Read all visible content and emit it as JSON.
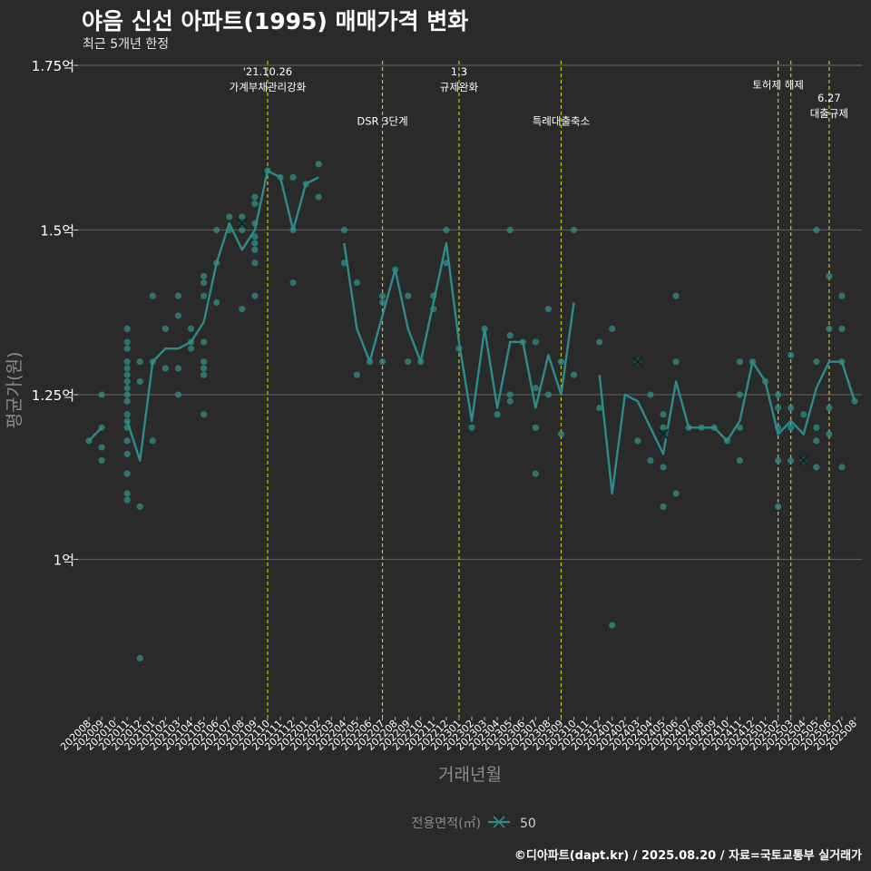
{
  "title": "야음 신선 아파트(1995) 매매가격 변화",
  "subtitle": "최근 5개년 한정",
  "caption": "©디아파트(dapt.kr) / 2025.08.20 / 자료=국토교통부 실거래가",
  "colors": {
    "background": "#2a2a2a",
    "grid": "#5a5a5a",
    "series": "#2e8b8b",
    "point": "#2f8f85",
    "event_line": "#c8c800",
    "text": "#ffffff",
    "axis_title": "#8c8c8c"
  },
  "chart_data": {
    "type": "line",
    "xlabel": "거래년월",
    "ylabel": "평균가(원)",
    "ylim": [
      0.8,
      1.75
    ],
    "y_ticks": [
      {
        "value": 1.0,
        "label": "1억"
      },
      {
        "value": 1.25,
        "label": "1.25억"
      },
      {
        "value": 1.5,
        "label": "1.5억"
      },
      {
        "value": 1.75,
        "label": "1.75억"
      }
    ],
    "grid": true,
    "legend": {
      "title": "전용면적(㎡)",
      "position": "bottom",
      "entries": [
        "50"
      ]
    },
    "categories": [
      "202008",
      "202009",
      "202010",
      "202011",
      "202012",
      "202101",
      "202102",
      "202103",
      "202104",
      "202105",
      "202106",
      "202107",
      "202108",
      "202109",
      "202110",
      "202111",
      "202112",
      "202201",
      "202202",
      "202203",
      "202204",
      "202205",
      "202206",
      "202207",
      "202208",
      "202209",
      "202210",
      "202211",
      "202212",
      "202301",
      "202302",
      "202303",
      "202304",
      "202305",
      "202306",
      "202307",
      "202308",
      "202309",
      "202310",
      "202311",
      "202312",
      "202401",
      "202402",
      "202403",
      "202404",
      "202405",
      "202406",
      "202407",
      "202408",
      "202409",
      "202410",
      "202411",
      "202412",
      "202501",
      "202502",
      "202503",
      "202504",
      "202505",
      "202506",
      "202507",
      "202508"
    ],
    "series": [
      {
        "name": "50",
        "average": [
          1.18,
          1.2,
          null,
          1.21,
          1.15,
          1.3,
          1.32,
          1.32,
          1.33,
          1.36,
          1.45,
          1.51,
          1.47,
          1.5,
          1.59,
          1.58,
          1.5,
          1.57,
          1.58,
          null,
          1.48,
          1.35,
          1.3,
          1.37,
          1.44,
          1.35,
          1.3,
          1.39,
          1.48,
          1.33,
          1.21,
          1.35,
          1.23,
          1.33,
          1.33,
          1.23,
          1.31,
          1.25,
          1.39,
          null,
          1.28,
          1.1,
          1.25,
          1.24,
          1.2,
          1.16,
          1.27,
          1.2,
          1.2,
          1.2,
          1.18,
          1.21,
          1.3,
          1.27,
          1.19,
          1.21,
          1.19,
          1.26,
          1.3,
          1.3,
          1.24
        ]
      }
    ],
    "transactions": [
      {
        "x": "202008",
        "y": 1.18
      },
      {
        "x": "202009",
        "y": 1.25
      },
      {
        "x": "202009",
        "y": 1.2
      },
      {
        "x": "202009",
        "y": 1.17
      },
      {
        "x": "202009",
        "y": 1.15
      },
      {
        "x": "202011",
        "y": 1.35
      },
      {
        "x": "202011",
        "y": 1.33
      },
      {
        "x": "202011",
        "y": 1.32
      },
      {
        "x": "202011",
        "y": 1.3
      },
      {
        "x": "202011",
        "y": 1.29
      },
      {
        "x": "202011",
        "y": 1.28
      },
      {
        "x": "202011",
        "y": 1.27
      },
      {
        "x": "202011",
        "y": 1.26
      },
      {
        "x": "202011",
        "y": 1.25
      },
      {
        "x": "202011",
        "y": 1.24
      },
      {
        "x": "202011",
        "y": 1.22
      },
      {
        "x": "202011",
        "y": 1.21
      },
      {
        "x": "202011",
        "y": 1.2
      },
      {
        "x": "202011",
        "y": 1.18
      },
      {
        "x": "202011",
        "y": 1.16
      },
      {
        "x": "202011",
        "y": 1.13
      },
      {
        "x": "202011",
        "y": 1.1
      },
      {
        "x": "202011",
        "y": 1.09
      },
      {
        "x": "202012",
        "y": 1.3
      },
      {
        "x": "202012",
        "y": 1.27
      },
      {
        "x": "202012",
        "y": 1.08
      },
      {
        "x": "202012",
        "y": 0.85
      },
      {
        "x": "202101",
        "y": 1.4
      },
      {
        "x": "202101",
        "y": 1.3
      },
      {
        "x": "202101",
        "y": 1.18
      },
      {
        "x": "202102",
        "y": 1.35
      },
      {
        "x": "202102",
        "y": 1.29
      },
      {
        "x": "202103",
        "y": 1.4
      },
      {
        "x": "202103",
        "y": 1.37
      },
      {
        "x": "202103",
        "y": 1.29
      },
      {
        "x": "202103",
        "y": 1.25
      },
      {
        "x": "202104",
        "y": 1.35
      },
      {
        "x": "202104",
        "y": 1.33
      },
      {
        "x": "202104",
        "y": 1.32
      },
      {
        "x": "202105",
        "y": 1.43
      },
      {
        "x": "202105",
        "y": 1.42
      },
      {
        "x": "202105",
        "y": 1.4
      },
      {
        "x": "202105",
        "y": 1.33
      },
      {
        "x": "202105",
        "y": 1.3
      },
      {
        "x": "202105",
        "y": 1.29
      },
      {
        "x": "202105",
        "y": 1.28
      },
      {
        "x": "202105",
        "y": 1.22
      },
      {
        "x": "202106",
        "y": 1.45
      },
      {
        "x": "202106",
        "y": 1.39
      },
      {
        "x": "202106",
        "y": 1.5
      },
      {
        "x": "202107",
        "y": 1.52
      },
      {
        "x": "202107",
        "y": 1.5
      },
      {
        "x": "202108",
        "y": 1.52
      },
      {
        "x": "202108",
        "y": 1.51
      },
      {
        "x": "202108",
        "y": 1.5
      },
      {
        "x": "202108",
        "y": 1.38
      },
      {
        "x": "202109",
        "y": 1.55
      },
      {
        "x": "202109",
        "y": 1.54
      },
      {
        "x": "202109",
        "y": 1.51
      },
      {
        "x": "202109",
        "y": 1.49
      },
      {
        "x": "202109",
        "y": 1.48
      },
      {
        "x": "202109",
        "y": 1.47
      },
      {
        "x": "202109",
        "y": 1.45
      },
      {
        "x": "202109",
        "y": 1.4
      },
      {
        "x": "202110",
        "y": 1.59
      },
      {
        "x": "202111",
        "y": 1.58
      },
      {
        "x": "202112",
        "y": 1.58
      },
      {
        "x": "202112",
        "y": 1.5
      },
      {
        "x": "202112",
        "y": 1.42
      },
      {
        "x": "202201",
        "y": 1.57
      },
      {
        "x": "202202",
        "y": 1.6
      },
      {
        "x": "202202",
        "y": 1.55
      },
      {
        "x": "202204",
        "y": 1.5
      },
      {
        "x": "202204",
        "y": 1.45
      },
      {
        "x": "202205",
        "y": 1.42
      },
      {
        "x": "202205",
        "y": 1.28
      },
      {
        "x": "202206",
        "y": 1.3
      },
      {
        "x": "202207",
        "y": 1.4
      },
      {
        "x": "202207",
        "y": 1.39
      },
      {
        "x": "202207",
        "y": 1.3
      },
      {
        "x": "202208",
        "y": 1.44
      },
      {
        "x": "202209",
        "y": 1.4
      },
      {
        "x": "202209",
        "y": 1.3
      },
      {
        "x": "202210",
        "y": 1.3
      },
      {
        "x": "202211",
        "y": 1.4
      },
      {
        "x": "202211",
        "y": 1.38
      },
      {
        "x": "202212",
        "y": 1.5
      },
      {
        "x": "202212",
        "y": 1.45
      },
      {
        "x": "202301",
        "y": 1.32
      },
      {
        "x": "202302",
        "y": 1.2
      },
      {
        "x": "202303",
        "y": 1.35
      },
      {
        "x": "202304",
        "y": 1.22
      },
      {
        "x": "202305",
        "y": 1.5
      },
      {
        "x": "202305",
        "y": 1.34
      },
      {
        "x": "202305",
        "y": 1.25
      },
      {
        "x": "202305",
        "y": 1.24
      },
      {
        "x": "202306",
        "y": 1.33
      },
      {
        "x": "202307",
        "y": 1.33
      },
      {
        "x": "202307",
        "y": 1.26
      },
      {
        "x": "202307",
        "y": 1.2
      },
      {
        "x": "202307",
        "y": 1.13
      },
      {
        "x": "202308",
        "y": 1.38
      },
      {
        "x": "202308",
        "y": 1.25
      },
      {
        "x": "202309",
        "y": 1.3
      },
      {
        "x": "202309",
        "y": 1.19
      },
      {
        "x": "202310",
        "y": 1.5
      },
      {
        "x": "202310",
        "y": 1.28
      },
      {
        "x": "202312",
        "y": 1.33
      },
      {
        "x": "202312",
        "y": 1.23
      },
      {
        "x": "202401",
        "y": 1.35
      },
      {
        "x": "202401",
        "y": 0.9
      },
      {
        "x": "202403",
        "y": 1.3
      },
      {
        "x": "202403",
        "y": 1.18
      },
      {
        "x": "202404",
        "y": 1.25
      },
      {
        "x": "202404",
        "y": 1.15
      },
      {
        "x": "202405",
        "y": 1.22
      },
      {
        "x": "202405",
        "y": 1.2
      },
      {
        "x": "202405",
        "y": 1.14
      },
      {
        "x": "202405",
        "y": 1.08
      },
      {
        "x": "202406",
        "y": 1.4
      },
      {
        "x": "202406",
        "y": 1.3
      },
      {
        "x": "202406",
        "y": 1.1
      },
      {
        "x": "202407",
        "y": 1.2
      },
      {
        "x": "202408",
        "y": 1.2
      },
      {
        "x": "202409",
        "y": 1.2
      },
      {
        "x": "202410",
        "y": 1.18
      },
      {
        "x": "202411",
        "y": 1.3
      },
      {
        "x": "202411",
        "y": 1.25
      },
      {
        "x": "202411",
        "y": 1.2
      },
      {
        "x": "202411",
        "y": 1.15
      },
      {
        "x": "202412",
        "y": 1.3
      },
      {
        "x": "202501",
        "y": 1.27
      },
      {
        "x": "202502",
        "y": 1.25
      },
      {
        "x": "202502",
        "y": 1.23
      },
      {
        "x": "202502",
        "y": 1.2
      },
      {
        "x": "202502",
        "y": 1.15
      },
      {
        "x": "202502",
        "y": 1.08
      },
      {
        "x": "202503",
        "y": 1.31
      },
      {
        "x": "202503",
        "y": 1.23
      },
      {
        "x": "202503",
        "y": 1.2
      },
      {
        "x": "202503",
        "y": 1.15
      },
      {
        "x": "202504",
        "y": 1.22
      },
      {
        "x": "202504",
        "y": 1.15
      },
      {
        "x": "202505",
        "y": 1.5
      },
      {
        "x": "202505",
        "y": 1.3
      },
      {
        "x": "202505",
        "y": 1.2
      },
      {
        "x": "202505",
        "y": 1.18
      },
      {
        "x": "202505",
        "y": 1.14
      },
      {
        "x": "202506",
        "y": 1.43
      },
      {
        "x": "202506",
        "y": 1.35
      },
      {
        "x": "202506",
        "y": 1.23
      },
      {
        "x": "202506",
        "y": 1.19
      },
      {
        "x": "202507",
        "y": 1.4
      },
      {
        "x": "202507",
        "y": 1.35
      },
      {
        "x": "202507",
        "y": 1.3
      },
      {
        "x": "202507",
        "y": 1.14
      },
      {
        "x": "202508",
        "y": 1.24
      }
    ],
    "cross_markers": [
      {
        "x": "202108",
        "y": 1.51
      },
      {
        "x": "202403",
        "y": 1.3
      },
      {
        "x": "202405",
        "y": 1.19
      },
      {
        "x": "202504",
        "y": 1.15
      }
    ],
    "events": [
      {
        "x": "202110",
        "lines": [
          "'21.10.26",
          "가계부채관리강화"
        ],
        "label_y": 1.735
      },
      {
        "x": "202207",
        "lines": [
          "DSR 3단계"
        ],
        "label_y": 1.66
      },
      {
        "x": "202301",
        "lines": [
          "1.3",
          "규제완화"
        ],
        "label_y": 1.735
      },
      {
        "x": "202309",
        "lines": [
          "특례대출축소"
        ],
        "label_y": 1.66
      },
      {
        "x": "202502",
        "lines": [
          "토허제 해제"
        ],
        "label_y": 1.715
      },
      {
        "x": "202503",
        "lines": [],
        "label_y": null
      },
      {
        "x": "202506",
        "lines": [
          "6.27",
          "대출규제"
        ],
        "label_y": 1.695
      }
    ]
  }
}
